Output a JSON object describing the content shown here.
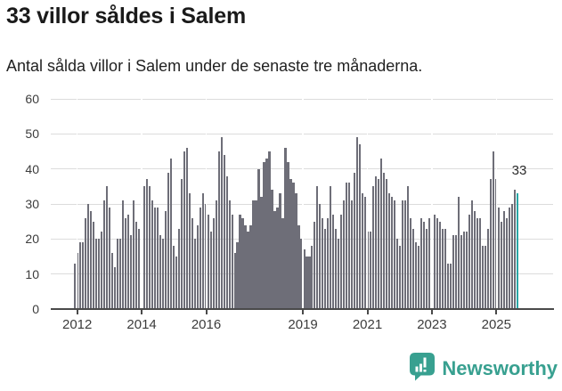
{
  "header": {
    "title": "33 villor såldes i Salem",
    "subtitle": "Antal sålda villor i Salem under de senaste tre månaderna."
  },
  "annotation": {
    "label": "33"
  },
  "branding": {
    "name": "Newsworthy",
    "logo_icon": "newsworthy-speech-bubble-bar-chart-icon",
    "color": "#38a090"
  },
  "chart_data": {
    "type": "bar",
    "title": "33 villor såldes i Salem",
    "xlabel": "",
    "ylabel": "",
    "ylim": [
      0,
      60
    ],
    "yticks": [
      0,
      10,
      20,
      30,
      40,
      50,
      60
    ],
    "x_tick_labels": [
      "2012",
      "2014",
      "2016",
      "2019",
      "2021",
      "2023",
      "2025"
    ],
    "grid": true,
    "legend": false,
    "bar_color": "#6e6e78",
    "highlight_color": "#29a7a6",
    "highlight_index": 166,
    "highlight_value": 33,
    "values": [
      13,
      16,
      19,
      19,
      26,
      30,
      28,
      25,
      20,
      20,
      22,
      31,
      35,
      29,
      16,
      12,
      20,
      20,
      31,
      26,
      27,
      21,
      31,
      25,
      23,
      29,
      35,
      37,
      35,
      31,
      29,
      29,
      21,
      20,
      28,
      39,
      43,
      18,
      15,
      23,
      37,
      45,
      46,
      33,
      26,
      20,
      24,
      29,
      33,
      30,
      27,
      22,
      26,
      31,
      45,
      49,
      44,
      38,
      31,
      27,
      16,
      19,
      27,
      26,
      24,
      22,
      24,
      31,
      31,
      40,
      32,
      42,
      43,
      45,
      34,
      28,
      29,
      33,
      26,
      46,
      42,
      37,
      36,
      33,
      24,
      20,
      17,
      15,
      15,
      18,
      25,
      35,
      30,
      26,
      23,
      26,
      35,
      27,
      23,
      20,
      27,
      31,
      36,
      36,
      31,
      39,
      49,
      47,
      33,
      32,
      22,
      22,
      35,
      38,
      37,
      43,
      39,
      37,
      33,
      32,
      31,
      20,
      18,
      31,
      31,
      35,
      26,
      23,
      19,
      18,
      26,
      25,
      23,
      26,
      28,
      27,
      26,
      25,
      23,
      23,
      13,
      13,
      21,
      21,
      32,
      21,
      22,
      22,
      27,
      31,
      28,
      26,
      26,
      18,
      18,
      23,
      37,
      45,
      37,
      29,
      25,
      28,
      26,
      29,
      30,
      34,
      33
    ]
  }
}
